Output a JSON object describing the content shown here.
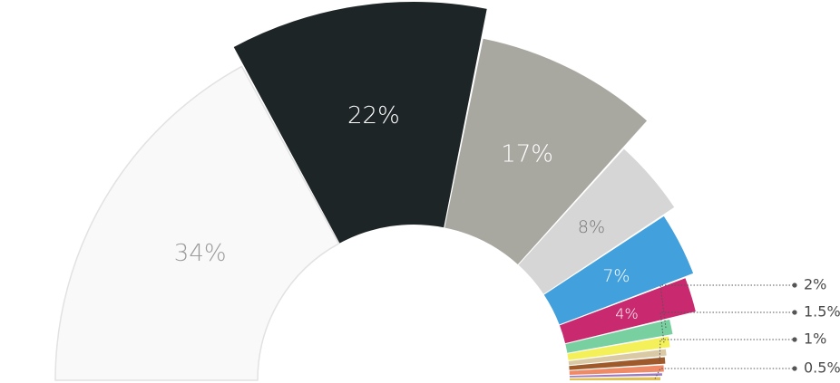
{
  "chart_data": {
    "type": "pie",
    "variant": "half-donut",
    "segments": [
      {
        "value": 34,
        "color": "#f9f9f9",
        "label": "34%",
        "label_color": "#9a9a9a",
        "callout": false
      },
      {
        "value": 22,
        "color": "#1d2526",
        "label": "22%",
        "label_color": "#ffffff",
        "callout": false
      },
      {
        "value": 17,
        "color": "#a8a7a0",
        "label": "17%",
        "label_color": "#ffffff",
        "callout": false
      },
      {
        "value": 8,
        "color": "#d6d6d6",
        "label": "8%",
        "label_color": "#777777",
        "callout": false
      },
      {
        "value": 7,
        "color": "#42a0dc",
        "label": "7%",
        "label_color": "#ffffff",
        "callout": false
      },
      {
        "value": 4,
        "color": "#c8296f",
        "label": "4%",
        "label_color": "#ffffff",
        "callout": false
      },
      {
        "value": 2,
        "color": "#78d0a0",
        "label": "2%",
        "label_color": "#4a4a4a",
        "callout": true
      },
      {
        "value": 1.5,
        "color": "#f3f05a",
        "label": "1.5%",
        "label_color": "#4a4a4a",
        "callout": true
      },
      {
        "value": 1,
        "color": "#d9c9a4",
        "label": "",
        "callout": false
      },
      {
        "value": 1,
        "color": "#9e5a2a",
        "label": "1%",
        "label_color": "#4a4a4a",
        "callout": true
      },
      {
        "value": 1,
        "color": "#ef8a66",
        "label": "",
        "callout": false
      },
      {
        "value": 0.5,
        "color": "#9b7bc4",
        "label": "",
        "callout": false
      },
      {
        "value": 0.5,
        "color": "#e0c054",
        "label": "0.5%",
        "label_color": "#4a4a4a",
        "callout": true
      }
    ]
  }
}
